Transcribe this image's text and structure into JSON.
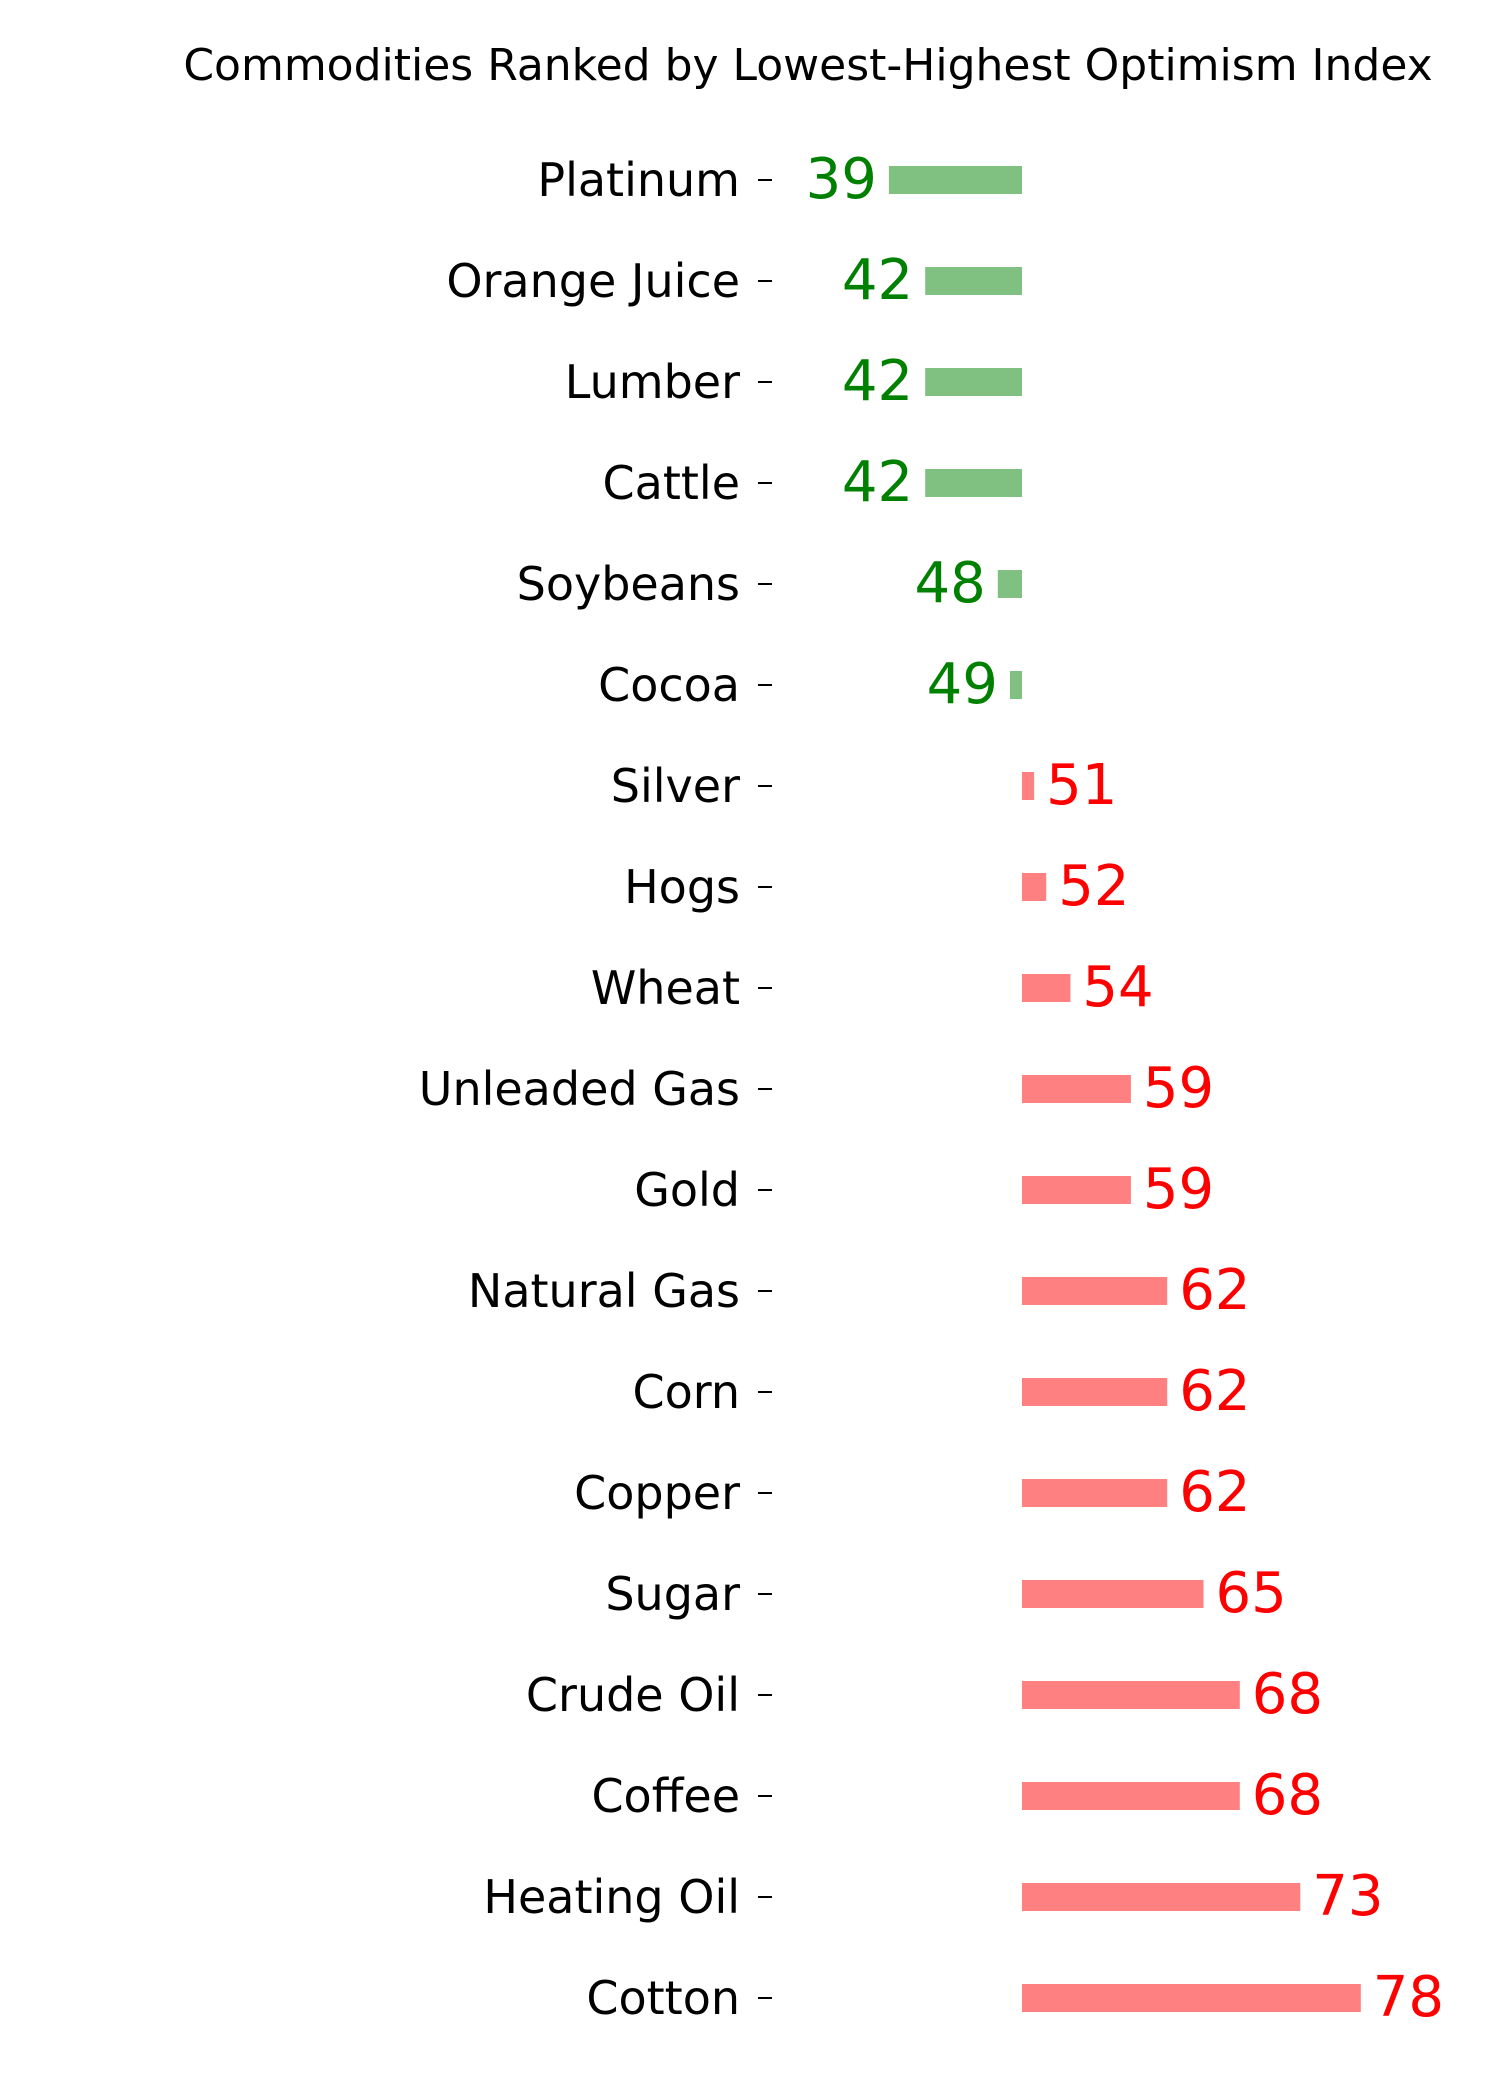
{
  "chart_data": {
    "type": "bar",
    "orientation": "horizontal",
    "title": "Commodities Ranked by Lowest-Highest Optimism Index",
    "xlabel": "",
    "ylabel": "",
    "baseline": 50,
    "xlim": [
      30,
      85
    ],
    "grid": false,
    "legend": "none",
    "colors": {
      "below_baseline": "#80c080",
      "below_baseline_label": "#008000",
      "above_baseline": "#ff8080",
      "above_baseline_label": "#ff0000"
    },
    "categories": [
      "Platinum",
      "Orange Juice",
      "Lumber",
      "Cattle",
      "Soybeans",
      "Cocoa",
      "Silver",
      "Hogs",
      "Wheat",
      "Unleaded Gas",
      "Gold",
      "Natural Gas",
      "Corn",
      "Copper",
      "Sugar",
      "Crude Oil",
      "Coffee",
      "Heating Oil",
      "Cotton"
    ],
    "values": [
      39,
      42,
      42,
      42,
      48,
      49,
      51,
      52,
      54,
      59,
      59,
      62,
      62,
      62,
      65,
      68,
      68,
      73,
      78
    ]
  }
}
